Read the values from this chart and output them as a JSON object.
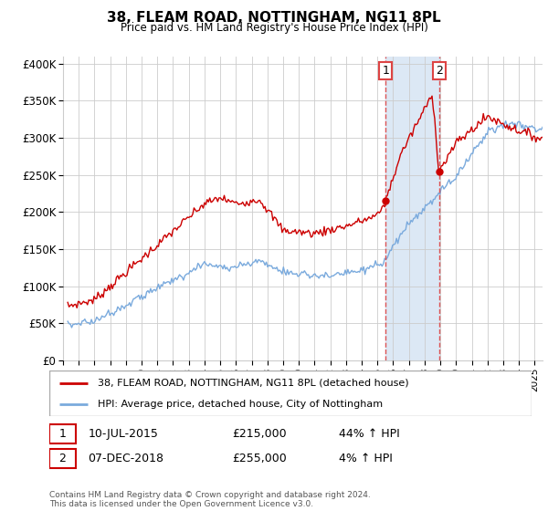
{
  "title": "38, FLEAM ROAD, NOTTINGHAM, NG11 8PL",
  "subtitle": "Price paid vs. HM Land Registry's House Price Index (HPI)",
  "ylabel_ticks": [
    "£0",
    "£50K",
    "£100K",
    "£150K",
    "£200K",
    "£250K",
    "£300K",
    "£350K",
    "£400K"
  ],
  "ytick_values": [
    0,
    50000,
    100000,
    150000,
    200000,
    250000,
    300000,
    350000,
    400000
  ],
  "ylim": [
    0,
    410000
  ],
  "xlim_start": 1995.3,
  "xlim_end": 2025.5,
  "sale1_x": 2015.52,
  "sale1_y": 215000,
  "sale2_x": 2018.92,
  "sale2_y": 255000,
  "legend_line1": "38, FLEAM ROAD, NOTTINGHAM, NG11 8PL (detached house)",
  "legend_line2": "HPI: Average price, detached house, City of Nottingham",
  "footer": "Contains HM Land Registry data © Crown copyright and database right 2024.\nThis data is licensed under the Open Government Licence v3.0.",
  "line_color_red": "#cc0000",
  "line_color_blue": "#7aaadd",
  "fill_color_blue": "#dce8f5",
  "vline_color": "#dd4444",
  "grid_color": "#cccccc",
  "background_color": "#ffffff"
}
